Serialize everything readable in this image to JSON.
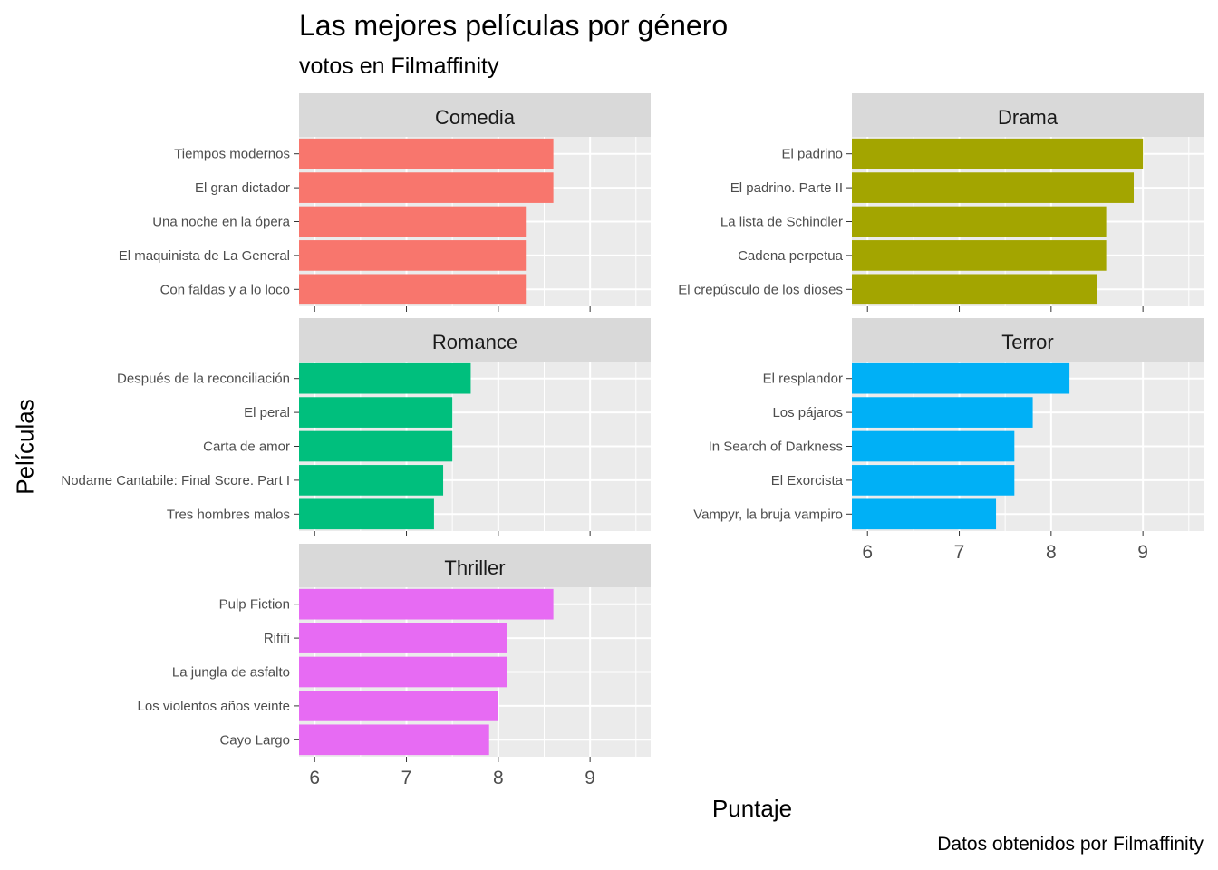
{
  "header": {
    "title": "Las mejores películas por género",
    "subtitle": "votos en Filmaffinity",
    "caption": "Datos obtenidos por Filmaffinity"
  },
  "chart_data": {
    "type": "bar",
    "orientation": "horizontal",
    "title": "Las mejores películas por género",
    "subtitle": "votos en Filmaffinity",
    "xlabel": "Puntaje",
    "ylabel": "Películas",
    "xlim": [
      5.83,
      9.66
    ],
    "xticks": [
      6,
      7,
      8,
      9
    ],
    "grid": true,
    "legend": "none",
    "facets": [
      {
        "name": "Comedia",
        "color": "#F8766D",
        "categories": [
          "Tiempos modernos",
          "El gran dictador",
          "Una noche en la ópera",
          "El maquinista de La General",
          "Con faldas y a lo loco"
        ],
        "values": [
          8.6,
          8.6,
          8.3,
          8.3,
          8.3
        ]
      },
      {
        "name": "Drama",
        "color": "#A3A500",
        "categories": [
          "El padrino",
          "El padrino. Parte II",
          "La lista de Schindler",
          "Cadena perpetua",
          "El crepúsculo de los dioses"
        ],
        "values": [
          9.0,
          8.9,
          8.6,
          8.6,
          8.5
        ]
      },
      {
        "name": "Romance",
        "color": "#00BF7D",
        "categories": [
          "Después de la reconciliación",
          "El peral",
          "Carta de amor",
          "Nodame Cantabile: Final Score. Part I",
          "Tres hombres malos"
        ],
        "values": [
          7.7,
          7.5,
          7.5,
          7.4,
          7.3
        ]
      },
      {
        "name": "Terror",
        "color": "#00B0F6",
        "categories": [
          "El resplandor",
          "Los pájaros",
          "In Search of Darkness",
          "El Exorcista",
          "Vampyr, la bruja vampiro"
        ],
        "values": [
          8.2,
          7.8,
          7.6,
          7.6,
          7.4
        ]
      },
      {
        "name": "Thriller",
        "color": "#E76BF3",
        "categories": [
          "Pulp Fiction",
          "Rififi",
          "La jungla de asfalto",
          "Los violentos años veinte",
          "Cayo Largo"
        ],
        "values": [
          8.6,
          8.1,
          8.1,
          8.0,
          7.9
        ]
      }
    ]
  }
}
